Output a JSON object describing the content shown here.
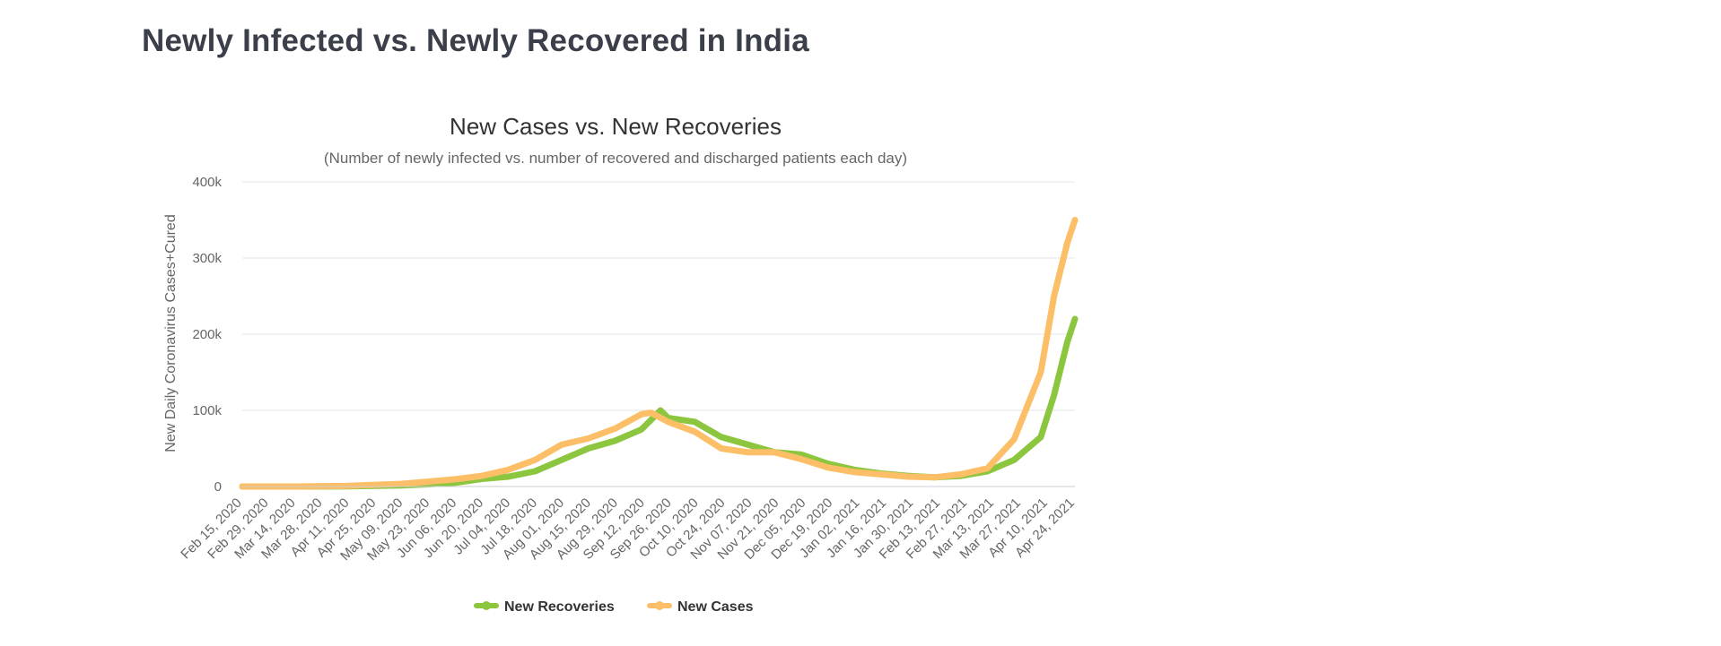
{
  "page": {
    "title": "Newly Infected vs. Newly Recovered in India"
  },
  "chart_data": {
    "type": "line",
    "title": "New Cases vs. New Recoveries",
    "subtitle": "(Number of newly infected vs. number of recovered and discharged patients each day)",
    "ylabel": "New Daily Coronavirus Cases+Cured",
    "xlabel": "",
    "ylim": [
      0,
      400000
    ],
    "y_ticks": [
      0,
      100000,
      200000,
      300000,
      400000
    ],
    "y_tick_labels": [
      "0",
      "100k",
      "200k",
      "300k",
      "400k"
    ],
    "x_range": [
      "2020-02-15",
      "2021-04-28"
    ],
    "x_tick_labels": [
      "Feb 15, 2020",
      "Feb 29, 2020",
      "Mar 14, 2020",
      "Mar 28, 2020",
      "Apr 11, 2020",
      "Apr 25, 2020",
      "May 09, 2020",
      "May 23, 2020",
      "Jun 06, 2020",
      "Jun 20, 2020",
      "Jul 04, 2020",
      "Jul 18, 2020",
      "Aug 01, 2020",
      "Aug 15, 2020",
      "Aug 29, 2020",
      "Sep 12, 2020",
      "Sep 26, 2020",
      "Oct 10, 2020",
      "Oct 24, 2020",
      "Nov 07, 2020",
      "Nov 21, 2020",
      "Dec 05, 2020",
      "Dec 19, 2020",
      "Jan 02, 2021",
      "Jan 16, 2021",
      "Jan 30, 2021",
      "Feb 13, 2021",
      "Feb 27, 2021",
      "Mar 13, 2021",
      "Mar 27, 2021",
      "Apr 10, 2021",
      "Apr 24, 2021"
    ],
    "grid": true,
    "legend_position": "bottom",
    "series": [
      {
        "name": "New Recoveries",
        "color": "#8cc63f",
        "points": [
          [
            "2020-02-15",
            0
          ],
          [
            "2020-03-14",
            0
          ],
          [
            "2020-04-11",
            200
          ],
          [
            "2020-05-09",
            1500
          ],
          [
            "2020-05-23",
            3000
          ],
          [
            "2020-06-06",
            5000
          ],
          [
            "2020-06-20",
            10000
          ],
          [
            "2020-07-04",
            13000
          ],
          [
            "2020-07-18",
            20000
          ],
          [
            "2020-08-01",
            35000
          ],
          [
            "2020-08-15",
            50000
          ],
          [
            "2020-08-29",
            60000
          ],
          [
            "2020-09-12",
            75000
          ],
          [
            "2020-09-22",
            100000
          ],
          [
            "2020-09-26",
            90000
          ],
          [
            "2020-10-10",
            85000
          ],
          [
            "2020-10-24",
            65000
          ],
          [
            "2020-11-07",
            55000
          ],
          [
            "2020-11-21",
            45000
          ],
          [
            "2020-12-05",
            42000
          ],
          [
            "2020-12-19",
            30000
          ],
          [
            "2021-01-02",
            22000
          ],
          [
            "2021-01-16",
            17000
          ],
          [
            "2021-01-30",
            14000
          ],
          [
            "2021-02-13",
            12000
          ],
          [
            "2021-02-27",
            14000
          ],
          [
            "2021-03-13",
            20000
          ],
          [
            "2021-03-27",
            35000
          ],
          [
            "2021-04-10",
            65000
          ],
          [
            "2021-04-17",
            120000
          ],
          [
            "2021-04-24",
            190000
          ],
          [
            "2021-04-28",
            220000
          ]
        ]
      },
      {
        "name": "New Cases",
        "color": "#fcbf67",
        "points": [
          [
            "2020-02-15",
            0
          ],
          [
            "2020-03-14",
            50
          ],
          [
            "2020-04-11",
            800
          ],
          [
            "2020-05-09",
            3500
          ],
          [
            "2020-05-23",
            6500
          ],
          [
            "2020-06-06",
            9500
          ],
          [
            "2020-06-20",
            14000
          ],
          [
            "2020-07-04",
            22000
          ],
          [
            "2020-07-18",
            35000
          ],
          [
            "2020-08-01",
            55000
          ],
          [
            "2020-08-15",
            63000
          ],
          [
            "2020-08-29",
            76000
          ],
          [
            "2020-09-12",
            95000
          ],
          [
            "2020-09-17",
            97000
          ],
          [
            "2020-09-26",
            85000
          ],
          [
            "2020-10-10",
            72000
          ],
          [
            "2020-10-24",
            50000
          ],
          [
            "2020-11-07",
            45000
          ],
          [
            "2020-11-21",
            45000
          ],
          [
            "2020-12-05",
            36000
          ],
          [
            "2020-12-19",
            25000
          ],
          [
            "2021-01-02",
            19000
          ],
          [
            "2021-01-16",
            16000
          ],
          [
            "2021-01-30",
            13000
          ],
          [
            "2021-02-13",
            12000
          ],
          [
            "2021-02-27",
            16000
          ],
          [
            "2021-03-13",
            24000
          ],
          [
            "2021-03-27",
            62000
          ],
          [
            "2021-04-10",
            150000
          ],
          [
            "2021-04-17",
            250000
          ],
          [
            "2021-04-24",
            320000
          ],
          [
            "2021-04-28",
            350000
          ]
        ]
      }
    ]
  }
}
